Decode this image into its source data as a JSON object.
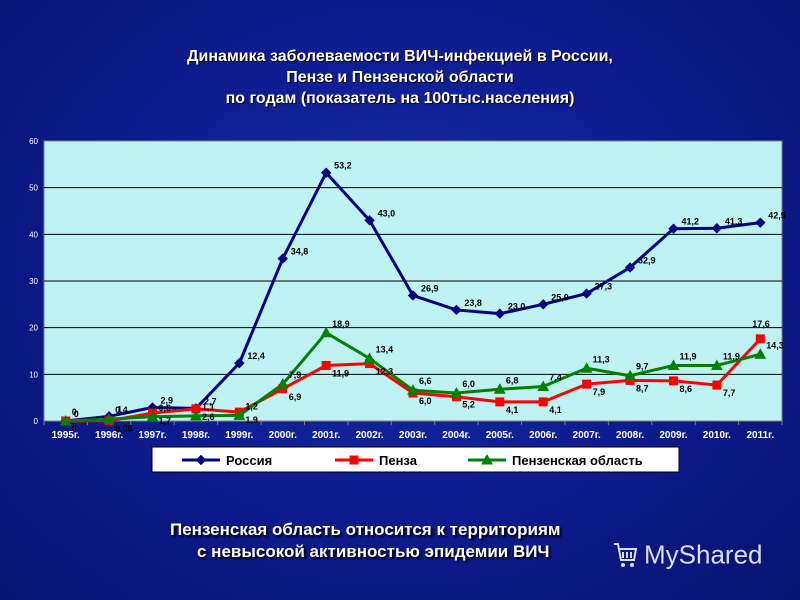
{
  "title": {
    "line1": "Динамика заболеваемости ВИЧ-инфекцией в России,",
    "line2": "Пензе и Пензенской области",
    "line3": "по годам (показатель на 100тыс.населения)"
  },
  "colors": {
    "plot_background": "#bff2f2",
    "russia": "#000080",
    "penza": "#ff0000",
    "region": "#008000"
  },
  "chart_data": {
    "type": "line",
    "categories": [
      "1995г.",
      "1996г.",
      "1997г.",
      "1998г.",
      "1999г.",
      "2000г.",
      "2001г.",
      "2002г.",
      "2003г.",
      "2004г.",
      "2005г.",
      "2006г.",
      "2007г.",
      "2008г.",
      "2009г.",
      "2010г.",
      "2011г."
    ],
    "ylim": [
      0,
      60
    ],
    "yticks": [
      "0",
      "10",
      "20",
      "30",
      "40",
      "50",
      "60"
    ],
    "grid": true,
    "legend_position": "bottom",
    "series": [
      {
        "name": "Россия",
        "marker": "diamond",
        "values": [
          0,
          1,
          2.9,
          2.7,
          12.4,
          34.8,
          53.2,
          43.0,
          26.9,
          23.8,
          23.0,
          25.0,
          27.3,
          32.9,
          41.2,
          41.3,
          42.5
        ],
        "labels": [
          "0",
          "1",
          "2,9",
          "2,7",
          "12,4",
          "34,8",
          "53,2",
          "43,0",
          "26,9",
          "23,8",
          "23,0",
          "25,0",
          "27,3",
          "32,9",
          "41,2",
          "41,3",
          "42,5"
        ]
      },
      {
        "name": "Пенза",
        "marker": "square",
        "values": [
          0,
          0.06,
          1.7,
          2.6,
          1.9,
          6.9,
          11.9,
          12.3,
          6.0,
          5.2,
          4.1,
          4.1,
          7.9,
          8.7,
          8.6,
          7.7,
          17.6
        ],
        "labels": [
          "0",
          "0,06",
          "1,7",
          "2,6",
          "1,9",
          "6,9",
          "11,9",
          "12,3",
          "6,0",
          "5,2",
          "4,1",
          "4,1",
          "7,9",
          "8,7",
          "8,6",
          "7,7",
          "17,6"
        ]
      },
      {
        "name": "Пензенская область",
        "marker": "triangle",
        "values": [
          0,
          0.4,
          0.9,
          1.1,
          1.2,
          7.9,
          18.9,
          13.4,
          6.6,
          6.0,
          6.8,
          7.4,
          11.3,
          9.7,
          11.9,
          11.9,
          14.3
        ],
        "labels": [
          "0",
          "0,4",
          "0,9",
          "1,1",
          "1,2",
          "7,9",
          "18,9",
          "13,4",
          "6,6",
          "6,0",
          "6,8",
          "7,4",
          "11,3",
          "9,7",
          "11,9",
          "11,9",
          "14,3"
        ]
      }
    ]
  },
  "caption": {
    "line1": "Пензенская область относится к территориям",
    "line2": "с невысокой активностью эпидемии ВИЧ"
  },
  "watermark": {
    "text": "MyShared",
    "icon": "shopping-cart-icon"
  }
}
